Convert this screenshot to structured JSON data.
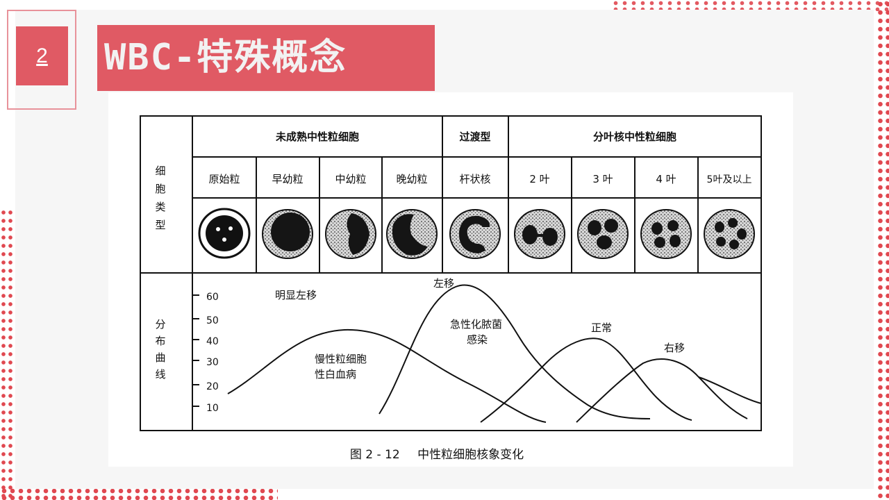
{
  "slide": {
    "number": "2",
    "title": "WBC-特殊概念"
  },
  "figure": {
    "header_groups": [
      "未成熟中性粒细胞",
      "过渡型",
      "分叶核中性粒细胞"
    ],
    "row_label_cell": "细胞类型",
    "row_label_curve": "分布曲线",
    "cell_names": [
      "原始粒",
      "早幼粒",
      "中幼粒",
      "晚幼粒",
      "杆状核",
      "2 叶",
      "3 叶",
      "4 叶",
      "5叶及以上"
    ],
    "y_ticks": [
      "60",
      "50",
      "40",
      "30",
      "20",
      "10"
    ],
    "annotations": {
      "marked_left_shift": "明显左移",
      "cml_line1": "慢性粒细胞",
      "cml_line2": "性白血病",
      "left_shift": "左移",
      "infection_line1": "急性化脓菌",
      "infection_line2": "感染",
      "normal": "正常",
      "right_shift": "右移"
    },
    "caption_number": "图 2 - 12",
    "caption_text": "中性粒细胞核象变化"
  }
}
